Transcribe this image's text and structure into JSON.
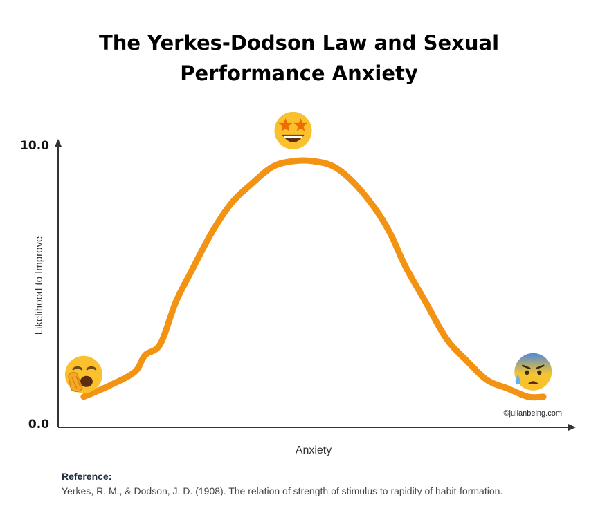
{
  "title_lines": [
    "The Yerkes-Dodson Law and Sexual",
    "Performance Anxiety"
  ],
  "chart_data": {
    "type": "line",
    "title": "The Yerkes-Dodson Law and Sexual Performance Anxiety",
    "xlabel": "Anxiety",
    "ylabel": "Likelihood to Improve",
    "y_tick_labels": [
      "0.0",
      "10.0"
    ],
    "ylim": [
      0,
      10
    ],
    "xlim": [
      0,
      1
    ],
    "grid": false,
    "legend": "none",
    "series": [
      {
        "color": "#f39313",
        "x": [
          0.05,
          0.1,
          0.15,
          0.17,
          0.2,
          0.23,
          0.26,
          0.3,
          0.34,
          0.38,
          0.42,
          0.46,
          0.5,
          0.54,
          0.58,
          0.62,
          0.65,
          0.68,
          0.72,
          0.76,
          0.8,
          0.84,
          0.88,
          0.92,
          0.95
        ],
        "y": [
          0.9,
          1.3,
          1.8,
          2.4,
          2.8,
          4.3,
          5.4,
          6.8,
          7.9,
          8.6,
          9.2,
          9.4,
          9.4,
          9.2,
          8.6,
          7.7,
          6.8,
          5.6,
          4.3,
          3.0,
          2.2,
          1.5,
          1.2,
          0.9,
          0.9
        ]
      }
    ],
    "annotations": [
      {
        "icon": "yawning-face-icon",
        "x": 0.05,
        "y": 1.7
      },
      {
        "icon": "star-struck-face-icon",
        "x": 0.46,
        "y": 10.5
      },
      {
        "icon": "anxious-sweat-face-icon",
        "x": 0.93,
        "y": 1.8
      }
    ],
    "watermark": "©julianbeing.com",
    "colors": {
      "line": "#f39313",
      "axis": "#333333"
    }
  },
  "reference": {
    "heading": "Reference:",
    "text": "Yerkes, R. M., & Dodson, J. D. (1908). The relation of strength of stimulus to rapidity of habit-formation."
  }
}
